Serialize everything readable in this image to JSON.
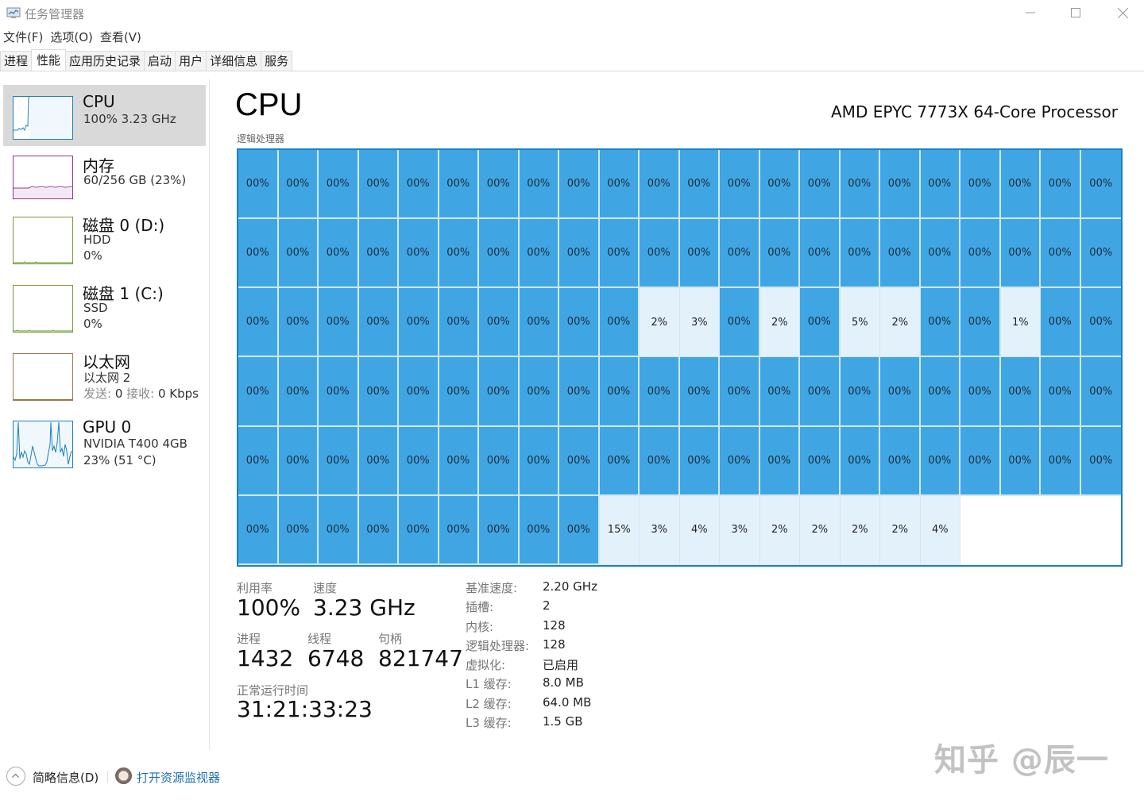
{
  "window": {
    "title": "任务管理器",
    "controls": {
      "minimize": "minimize-icon",
      "maximize": "maximize-icon",
      "close": "close-icon"
    }
  },
  "menu": [
    {
      "label": "文件(F)"
    },
    {
      "label": "选项(O)"
    },
    {
      "label": "查看(V)"
    }
  ],
  "tabs": [
    {
      "label": "进程",
      "active": false
    },
    {
      "label": "性能",
      "active": true
    },
    {
      "label": "应用历史记录",
      "active": false
    },
    {
      "label": "启动",
      "active": false
    },
    {
      "label": "用户",
      "active": false
    },
    {
      "label": "详细信息",
      "active": false
    },
    {
      "label": "服务",
      "active": false
    }
  ],
  "sidebar": {
    "items": [
      {
        "title": "CPU",
        "line1": "100%  3.23 GHz",
        "line2": "",
        "color": "#1d7fbf",
        "active": true
      },
      {
        "title": "内存",
        "line1": "60/256 GB (23%)",
        "line2": "",
        "color": "#8b3a8f",
        "active": false
      },
      {
        "title": "磁盘 0 (D:)",
        "line1": "HDD",
        "line2": "0%",
        "color": "#5a9a2c",
        "active": false
      },
      {
        "title": "磁盘 1 (C:)",
        "line1": "SSD",
        "line2": "0%",
        "color": "#5a9a2c",
        "active": false
      },
      {
        "title": "以太网",
        "line1": "以太网 2",
        "line2_send_label": "发送:",
        "line2_send_value": " 0 ",
        "line2_recv_label": "接收:",
        "line2_recv_value": " 0 Kbps",
        "color": "#a0703a",
        "active": false
      },
      {
        "title": "GPU 0",
        "line1": "NVIDIA T400 4GB",
        "line2": "23% (51 °C)",
        "color": "#1d7fbf",
        "active": false
      }
    ]
  },
  "main": {
    "title": "CPU",
    "processor_name": "AMD EPYC 7773X 64-Core Processor",
    "grid_label": "逻辑处理器",
    "grid": {
      "columns": 22,
      "rows": 6,
      "cells": [
        "00%",
        "00%",
        "00%",
        "00%",
        "00%",
        "00%",
        "00%",
        "00%",
        "00%",
        "00%",
        "00%",
        "00%",
        "00%",
        "00%",
        "00%",
        "00%",
        "00%",
        "00%",
        "00%",
        "00%",
        "00%",
        "00%",
        "00%",
        "00%",
        "00%",
        "00%",
        "00%",
        "00%",
        "00%",
        "00%",
        "00%",
        "00%",
        "00%",
        "00%",
        "00%",
        "00%",
        "00%",
        "00%",
        "00%",
        "00%",
        "00%",
        "00%",
        "00%",
        "00%",
        "00%",
        "00%",
        "00%",
        "00%",
        "00%",
        "00%",
        "00%",
        "00%",
        "00%",
        "00%",
        "2%",
        "3%",
        "00%",
        "2%",
        "00%",
        "5%",
        "2%",
        "00%",
        "00%",
        "1%",
        "00%",
        "00%",
        "00%",
        "00%",
        "00%",
        "00%",
        "00%",
        "00%",
        "00%",
        "00%",
        "00%",
        "00%",
        "00%",
        "00%",
        "00%",
        "00%",
        "00%",
        "00%",
        "00%",
        "00%",
        "00%",
        "00%",
        "00%",
        "00%",
        "00%",
        "00%",
        "00%",
        "00%",
        "00%",
        "00%",
        "00%",
        "00%",
        "00%",
        "00%",
        "00%",
        "00%",
        "00%",
        "00%",
        "00%",
        "00%",
        "00%",
        "00%",
        "00%",
        "00%",
        "00%",
        "00%",
        "00%",
        "00%",
        "00%",
        "00%",
        "00%",
        "00%",
        "00%",
        "00%",
        "00%",
        "15%",
        "3%",
        "4%",
        "3%",
        "2%",
        "2%",
        "2%",
        "2%",
        "4%",
        "",
        "",
        "",
        ""
      ]
    },
    "stats": {
      "utilization_label": "利用率",
      "utilization_value": "100%",
      "speed_label": "速度",
      "speed_value": "3.23 GHz",
      "processes_label": "进程",
      "processes_value": "1432",
      "threads_label": "线程",
      "threads_value": "6748",
      "handles_label": "句柄",
      "handles_value": "821747",
      "uptime_label": "正常运行时间",
      "uptime_value": "31:21:33:23"
    },
    "specs": [
      {
        "label": "基准速度:",
        "value": "2.20 GHz"
      },
      {
        "label": "插槽:",
        "value": "2"
      },
      {
        "label": "内核:",
        "value": "128"
      },
      {
        "label": "逻辑处理器:",
        "value": "128"
      },
      {
        "label": "虚拟化:",
        "value": "已启用"
      },
      {
        "label": "L1 缓存:",
        "value": "8.0 MB"
      },
      {
        "label": "L2 缓存:",
        "value": "64.0 MB"
      },
      {
        "label": "L3 缓存:",
        "value": "1.5 GB"
      }
    ]
  },
  "footer": {
    "brief_label": "简略信息(D)",
    "resource_monitor_label": "打开资源监视器"
  },
  "watermark": "知乎 @辰一",
  "colors": {
    "accent": "#1d7fbf",
    "cell_busy": "#40a6e3",
    "cell_low": "#e3f1fb",
    "link": "#1f6fb0"
  }
}
